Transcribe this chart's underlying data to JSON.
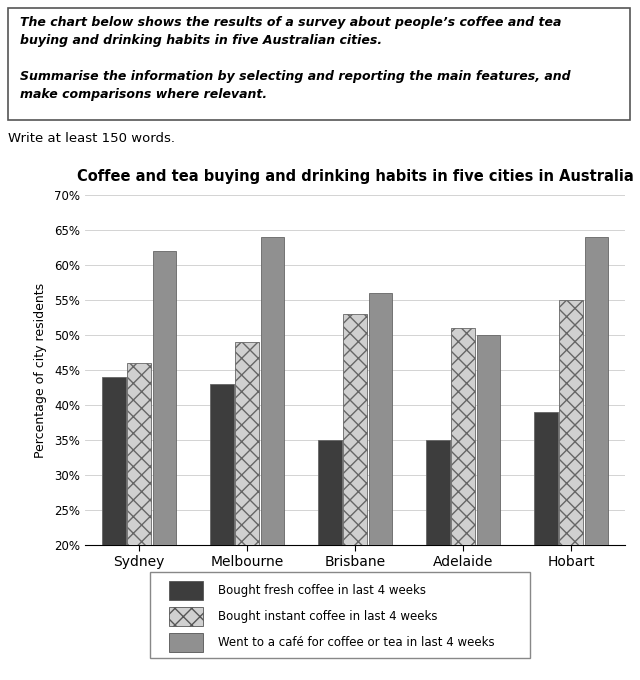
{
  "title": "Coffee and tea buying and drinking habits in five cities in Australia",
  "ylabel": "Percentage of city residents",
  "cities": [
    "Sydney",
    "Melbourne",
    "Brisbane",
    "Adelaide",
    "Hobart"
  ],
  "series": [
    {
      "label": "Bought fresh coffee in last 4 weeks",
      "values": [
        44,
        43,
        35,
        35,
        39
      ],
      "color": "#3d3d3d",
      "hatch": null
    },
    {
      "label": "Bought instant coffee in last 4 weeks",
      "values": [
        46,
        49,
        53,
        51,
        55
      ],
      "color": "#d0d0d0",
      "hatch": "xx"
    },
    {
      "label": "Went to a café for coffee or tea in last 4 weeks",
      "values": [
        62,
        64,
        56,
        50,
        64
      ],
      "color": "#909090",
      "hatch": null
    }
  ],
  "ylim": [
    20,
    70
  ],
  "yticks": [
    20,
    25,
    30,
    35,
    40,
    45,
    50,
    55,
    60,
    65,
    70
  ],
  "ytick_labels": [
    "20%",
    "25%",
    "30%",
    "35%",
    "40%",
    "45%",
    "50%",
    "55%",
    "60%",
    "65%",
    "70%"
  ],
  "bar_width": 0.22,
  "prompt_lines": [
    "The chart below shows the results of a survey about people’s coffee and tea",
    "buying and drinking habits in five Australian cities.",
    "",
    "Summarise the information by selecting and reporting the main features, and",
    "make comparisons where relevant."
  ],
  "subtext": "Write at least 150 words.",
  "fig_width": 6.4,
  "fig_height": 6.8,
  "background_color": "#ffffff"
}
